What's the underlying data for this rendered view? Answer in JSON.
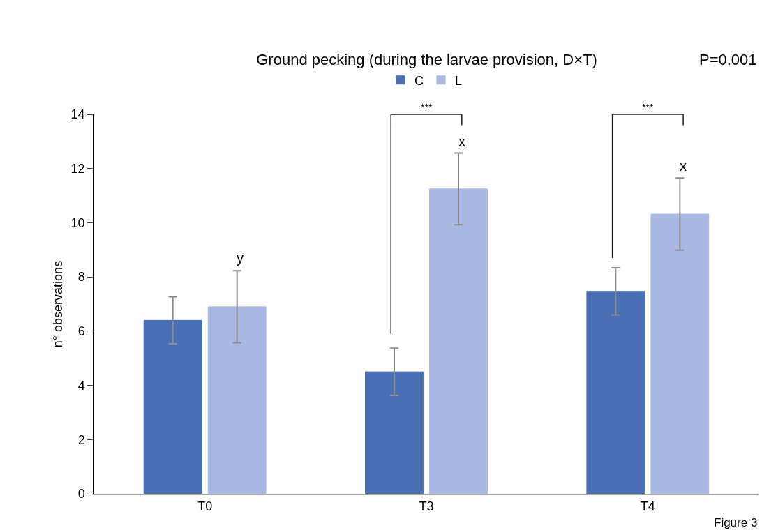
{
  "chart_data": {
    "type": "bar",
    "title": "Ground pecking (during the larvae provision, D×T)",
    "ylabel": "n° observations",
    "categories": [
      "T0",
      "T3",
      "T4"
    ],
    "series": [
      {
        "name": "C",
        "color": "#4a6fb5",
        "values": [
          6.4,
          4.5,
          7.47
        ],
        "errors": [
          0.87,
          0.87,
          0.87
        ]
      },
      {
        "name": "L",
        "color": "#a9b9e3",
        "values": [
          6.9,
          11.25,
          10.32
        ],
        "errors": [
          1.33,
          1.32,
          1.33
        ]
      }
    ],
    "ylim": [
      0,
      14
    ],
    "yticks": [
      0,
      2,
      4,
      6,
      8,
      10,
      12,
      14
    ],
    "grid": false,
    "legend": "top",
    "annotations": [
      "P=0.001",
      "Figure 3",
      "y",
      "x",
      "x",
      "***",
      "***"
    ]
  }
}
